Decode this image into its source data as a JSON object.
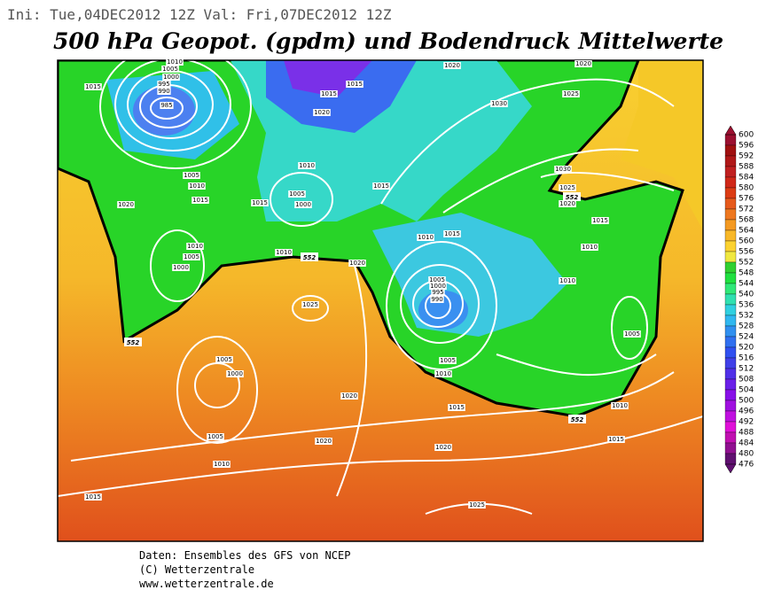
{
  "header": {
    "run": "Ini: Tue,04DEC2012  12Z  Val: Fri,07DEC2012  12Z",
    "title": "500 hPa Geopot. (gpdm) und Bodendruck Mittelwerte"
  },
  "map": {
    "isobar_labels": [
      1010,
      1005,
      1000,
      995,
      990,
      985,
      1015,
      1020,
      1020,
      1015,
      1015,
      1020,
      1030,
      1025,
      1010,
      1005,
      1010,
      1015,
      1005,
      1000,
      1015,
      1015,
      1020,
      1030,
      1025,
      1020,
      1015,
      1010,
      1010,
      1015,
      1010,
      1005,
      1000,
      1010,
      1020,
      1005,
      1000,
      995,
      990,
      1010,
      1025,
      1005,
      1000,
      1005,
      1005,
      1010,
      1020,
      1015,
      1010,
      1005,
      1020,
      1015,
      1020,
      1010,
      1015,
      1025
    ],
    "geopotential_labels": [
      552,
      552,
      552,
      552
    ]
  },
  "colorbar": {
    "labels": [
      600,
      596,
      592,
      588,
      584,
      580,
      576,
      572,
      568,
      564,
      560,
      556,
      552,
      548,
      544,
      540,
      536,
      532,
      528,
      524,
      520,
      516,
      512,
      508,
      504,
      500,
      496,
      492,
      488,
      484,
      480,
      476
    ],
    "colors": [
      "#9b1030",
      "#a01010",
      "#b01818",
      "#c02020",
      "#d02818",
      "#dc3c14",
      "#e65a1c",
      "#ee7820",
      "#f49a22",
      "#f8b828",
      "#fcd230",
      "#f0e840",
      "#30d030",
      "#20e040",
      "#30e878",
      "#30e0b0",
      "#30d0e0",
      "#30b8f0",
      "#3090f0",
      "#3070f0",
      "#3050f0",
      "#4040e8",
      "#5030e8",
      "#6a20e8",
      "#8810e8",
      "#a010e0",
      "#c010e0",
      "#e010d8",
      "#c010b0",
      "#901090",
      "#601070"
    ]
  },
  "footer": [
    "Daten: Ensembles des GFS von NCEP",
    "(C) Wetterzentrale",
    "www.wetterzentrale.de"
  ]
}
